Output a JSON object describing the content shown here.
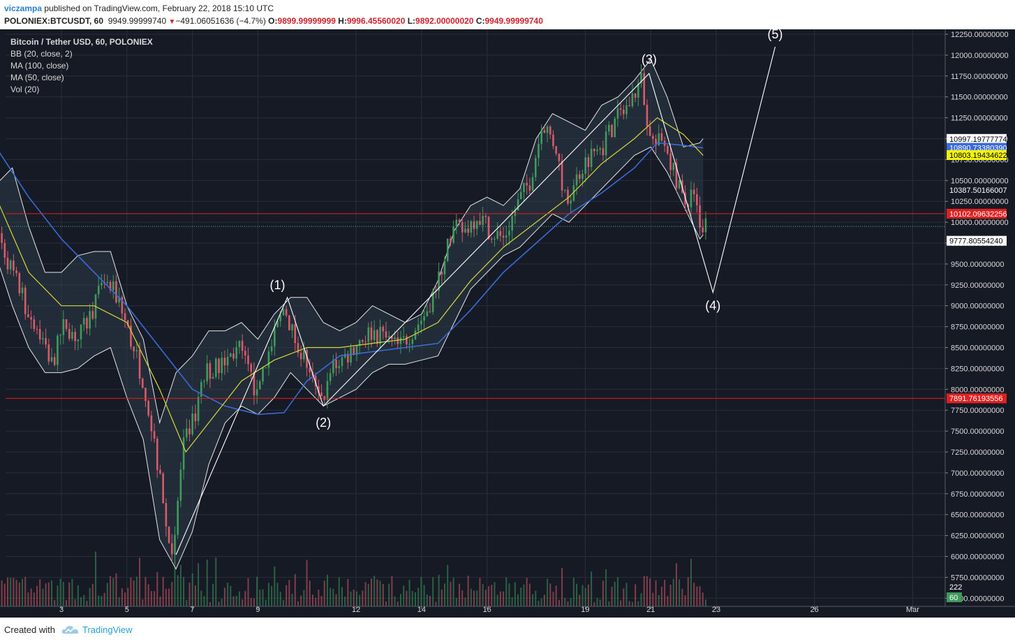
{
  "header": {
    "author": "viczampa",
    "published_text": "published on TradingView.com, February 22, 2018 15:10 UTC",
    "symbol": "POLONIEX:BTCUSDT, 60",
    "price": "9949.99999740",
    "change": "−491.06051636 (−4.7%)",
    "o_label": "O:",
    "o": "9899.99999999",
    "h_label": "H:",
    "h": "9996.45560020",
    "l_label": "L:",
    "l": "9892.00000020",
    "c_label": "C:",
    "c": "9949.99999740"
  },
  "legend": [
    "Bitcoin / Tether USD, 60, POLONIEX",
    "BB (20, close, 2)",
    "MA (100, close)",
    "MA (50, close)",
    "Vol (20)"
  ],
  "footer": {
    "created_with": "Created with",
    "brand": "TradingView"
  },
  "colors": {
    "background": "#161a25",
    "grid": "#2a2e39",
    "up": "#3f9a5c",
    "down": "#d95b6a",
    "ma100": "#3a6bd6",
    "ma50": "#d6d63a",
    "bb": "#e6e6e6",
    "wave": "#ffffff",
    "hline": "#e02020"
  },
  "chart_data": {
    "type": "candlestick",
    "ylim": [
      5500,
      12250
    ],
    "y_ticks": [
      "12250.00000000",
      "12000.00000000",
      "11750.00000000",
      "11500.00000000",
      "11250.00000000",
      "11000.00000000",
      "10750.00000000",
      "10500.00000000",
      "10250.00000000",
      "10000.00000000",
      "9750.00000000",
      "9500.00000000",
      "9250.00000000",
      "9000.00000000",
      "8750.00000000",
      "8500.00000000",
      "8250.00000000",
      "8000.00000000",
      "7750.00000000",
      "7500.00000000",
      "7250.00000000",
      "7000.00000000",
      "6750.00000000",
      "6500.00000000",
      "6250.00000000",
      "6000.00000000",
      "5750.00000000",
      "5500.00000000"
    ],
    "x_ticks": [
      {
        "label": "3",
        "day": 3
      },
      {
        "label": "5",
        "day": 5
      },
      {
        "label": "7",
        "day": 7
      },
      {
        "label": "9",
        "day": 9
      },
      {
        "label": "12",
        "day": 12
      },
      {
        "label": "14",
        "day": 14
      },
      {
        "label": "16",
        "day": 16
      },
      {
        "label": "19",
        "day": 19
      },
      {
        "label": "21",
        "day": 21
      },
      {
        "label": "23",
        "day": 23
      },
      {
        "label": "26",
        "day": 26
      },
      {
        "label": "Mar",
        "day": 29
      }
    ],
    "price_path": [
      [
        1.0,
        10100
      ],
      [
        1.3,
        9700
      ],
      [
        1.6,
        9400
      ],
      [
        2.0,
        9000
      ],
      [
        2.4,
        8700
      ],
      [
        2.8,
        8300
      ],
      [
        3.2,
        8800
      ],
      [
        3.6,
        8600
      ],
      [
        4.0,
        8900
      ],
      [
        4.4,
        9300
      ],
      [
        4.8,
        9100
      ],
      [
        5.2,
        8600
      ],
      [
        5.6,
        8100
      ],
      [
        6.0,
        7200
      ],
      [
        6.3,
        6300
      ],
      [
        6.5,
        6050
      ],
      [
        6.8,
        7300
      ],
      [
        7.1,
        7600
      ],
      [
        7.5,
        8200
      ],
      [
        8.0,
        8300
      ],
      [
        8.5,
        8500
      ],
      [
        9.0,
        8000
      ],
      [
        9.5,
        8500
      ],
      [
        9.9,
        9000
      ],
      [
        10.2,
        8600
      ],
      [
        10.6,
        8300
      ],
      [
        11.0,
        7800
      ],
      [
        11.4,
        8300
      ],
      [
        11.8,
        8400
      ],
      [
        12.2,
        8600
      ],
      [
        12.6,
        8700
      ],
      [
        13.0,
        8600
      ],
      [
        13.4,
        8500
      ],
      [
        13.8,
        8700
      ],
      [
        14.2,
        8900
      ],
      [
        14.6,
        9300
      ],
      [
        15.0,
        9900
      ],
      [
        15.4,
        9900
      ],
      [
        15.8,
        10100
      ],
      [
        16.2,
        9900
      ],
      [
        16.6,
        9800
      ],
      [
        17.0,
        10200
      ],
      [
        17.4,
        10500
      ],
      [
        17.8,
        11200
      ],
      [
        18.2,
        10900
      ],
      [
        18.5,
        10200
      ],
      [
        18.9,
        10600
      ],
      [
        19.2,
        10800
      ],
      [
        19.6,
        10900
      ],
      [
        20.0,
        11200
      ],
      [
        20.4,
        11400
      ],
      [
        20.8,
        11700
      ],
      [
        21.0,
        11200
      ],
      [
        21.2,
        10900
      ],
      [
        21.5,
        11000
      ],
      [
        21.8,
        10600
      ],
      [
        22.1,
        10200
      ],
      [
        22.4,
        10400
      ],
      [
        22.6,
        10000
      ],
      [
        22.75,
        9950
      ]
    ],
    "ma50_path": [
      [
        1.0,
        10300
      ],
      [
        2.0,
        9400
      ],
      [
        3.0,
        9000
      ],
      [
        4.0,
        9000
      ],
      [
        5.0,
        8800
      ],
      [
        6.0,
        8000
      ],
      [
        6.8,
        7250
      ],
      [
        7.5,
        7600
      ],
      [
        8.5,
        8100
      ],
      [
        9.5,
        8350
      ],
      [
        10.5,
        8500
      ],
      [
        11.5,
        8500
      ],
      [
        12.5,
        8550
      ],
      [
        13.5,
        8600
      ],
      [
        14.5,
        8800
      ],
      [
        15.5,
        9300
      ],
      [
        16.5,
        9700
      ],
      [
        17.5,
        10000
      ],
      [
        18.5,
        10300
      ],
      [
        19.5,
        10700
      ],
      [
        20.5,
        11000
      ],
      [
        21.2,
        11250
      ],
      [
        22.0,
        11050
      ],
      [
        22.6,
        10800
      ]
    ],
    "ma100_path": [
      [
        1.0,
        10900
      ],
      [
        2.0,
        10300
      ],
      [
        3.0,
        9800
      ],
      [
        4.0,
        9400
      ],
      [
        5.0,
        9000
      ],
      [
        6.0,
        8500
      ],
      [
        7.0,
        8000
      ],
      [
        8.0,
        7800
      ],
      [
        9.0,
        7700
      ],
      [
        9.8,
        7720
      ],
      [
        10.5,
        8100
      ],
      [
        11.5,
        8400
      ],
      [
        12.5,
        8450
      ],
      [
        13.5,
        8500
      ],
      [
        14.5,
        8550
      ],
      [
        15.5,
        8950
      ],
      [
        16.5,
        9400
      ],
      [
        17.5,
        9750
      ],
      [
        18.5,
        10100
      ],
      [
        19.5,
        10350
      ],
      [
        20.5,
        10650
      ],
      [
        21.2,
        10950
      ],
      [
        22.0,
        10920
      ],
      [
        22.6,
        10890
      ]
    ],
    "bb_upper": [
      [
        1.0,
        10450
      ],
      [
        1.5,
        10650
      ],
      [
        2.0,
        9950
      ],
      [
        2.5,
        9400
      ],
      [
        3.0,
        9400
      ],
      [
        3.5,
        9600
      ],
      [
        4.0,
        9650
      ],
      [
        4.5,
        9650
      ],
      [
        5.0,
        9000
      ],
      [
        5.5,
        8600
      ],
      [
        6.0,
        7600
      ],
      [
        6.5,
        8200
      ],
      [
        7.0,
        8400
      ],
      [
        7.5,
        8700
      ],
      [
        8.0,
        8700
      ],
      [
        8.5,
        8800
      ],
      [
        9.0,
        8600
      ],
      [
        9.5,
        8900
      ],
      [
        10.0,
        9100
      ],
      [
        10.5,
        9100
      ],
      [
        11.0,
        8800
      ],
      [
        11.5,
        8700
      ],
      [
        12.0,
        8800
      ],
      [
        12.5,
        9000
      ],
      [
        13.0,
        8900
      ],
      [
        13.5,
        8800
      ],
      [
        14.0,
        8900
      ],
      [
        14.5,
        9300
      ],
      [
        15.0,
        9900
      ],
      [
        15.5,
        10200
      ],
      [
        16.0,
        10300
      ],
      [
        16.5,
        10200
      ],
      [
        17.0,
        10400
      ],
      [
        17.5,
        11000
      ],
      [
        18.0,
        11300
      ],
      [
        18.5,
        11200
      ],
      [
        19.0,
        11100
      ],
      [
        19.5,
        11400
      ],
      [
        20.0,
        11500
      ],
      [
        20.5,
        11700
      ],
      [
        21.0,
        11950
      ],
      [
        21.5,
        11500
      ],
      [
        22.0,
        10900
      ],
      [
        22.5,
        10950
      ],
      [
        22.6,
        11000
      ]
    ],
    "bb_lower": [
      [
        1.0,
        9600
      ],
      [
        1.5,
        9000
      ],
      [
        2.0,
        8500
      ],
      [
        2.5,
        8200
      ],
      [
        3.0,
        8200
      ],
      [
        3.5,
        8250
      ],
      [
        4.0,
        8400
      ],
      [
        4.5,
        8500
      ],
      [
        5.0,
        7900
      ],
      [
        5.5,
        7400
      ],
      [
        6.0,
        6200
      ],
      [
        6.5,
        5850
      ],
      [
        7.0,
        6300
      ],
      [
        7.5,
        7100
      ],
      [
        8.0,
        7600
      ],
      [
        8.5,
        7800
      ],
      [
        9.0,
        7700
      ],
      [
        9.5,
        7900
      ],
      [
        10.0,
        8200
      ],
      [
        10.5,
        8000
      ],
      [
        11.0,
        7800
      ],
      [
        11.5,
        7900
      ],
      [
        12.0,
        8000
      ],
      [
        12.5,
        8200
      ],
      [
        13.0,
        8300
      ],
      [
        13.5,
        8300
      ],
      [
        14.0,
        8350
      ],
      [
        14.5,
        8400
      ],
      [
        15.0,
        8800
      ],
      [
        15.5,
        9200
      ],
      [
        16.0,
        9400
      ],
      [
        16.5,
        9600
      ],
      [
        17.0,
        9700
      ],
      [
        17.5,
        9900
      ],
      [
        18.0,
        10100
      ],
      [
        18.5,
        10000
      ],
      [
        19.0,
        10200
      ],
      [
        19.5,
        10400
      ],
      [
        20.0,
        10600
      ],
      [
        20.5,
        10800
      ],
      [
        21.0,
        10900
      ],
      [
        21.5,
        10600
      ],
      [
        22.0,
        10200
      ],
      [
        22.5,
        9800
      ],
      [
        22.6,
        9850
      ]
    ],
    "wave_path": [
      [
        6.5,
        6020
      ],
      [
        9.9,
        9100
      ],
      [
        11.0,
        7800
      ],
      [
        20.95,
        11780
      ],
      [
        22.9,
        9160
      ],
      [
        24.8,
        12100
      ]
    ],
    "wave_labels": [
      {
        "text": "(1)",
        "day": 9.6,
        "price": 9200
      },
      {
        "text": "(2)",
        "day": 11.0,
        "price": 7550
      },
      {
        "text": "(3)",
        "day": 20.95,
        "price": 11900
      },
      {
        "text": "(4)",
        "day": 22.9,
        "price": 8950
      },
      {
        "text": "(5)",
        "day": 24.8,
        "price": 12200
      }
    ],
    "hlines": [
      10102.09632256,
      7891.76193556
    ],
    "last_price": 9949.9999974,
    "price_labels": [
      {
        "text": "10997.19777774",
        "price": 10997.2,
        "bg": "#ffffff",
        "fg": "#000000"
      },
      {
        "text": "10890.73380390",
        "price": 10890.7,
        "bg": "#3a6bd6",
        "fg": "#ffffff"
      },
      {
        "text": "10803.19434622",
        "price": 10803.2,
        "bg": "#f4f40a",
        "fg": "#000000"
      },
      {
        "text": "10387.50166007",
        "price": 10387.5,
        "bg": "#161a25",
        "fg": "#ffffff"
      },
      {
        "text": "10102.09632256",
        "price": 10102.1,
        "bg": "#e02020",
        "fg": "#ffffff"
      },
      {
        "text": "9777.80554240",
        "price": 9777.8,
        "bg": "#ffffff",
        "fg": "#000000"
      },
      {
        "text": "7891.76193556",
        "price": 7891.8,
        "bg": "#e02020",
        "fg": "#ffffff"
      }
    ],
    "volume_labels": [
      {
        "text": "222",
        "bg": "#161a25",
        "fg": "#ffffff"
      },
      {
        "text": "60",
        "bg": "#3f9a5c",
        "fg": "#ffffff"
      }
    ]
  }
}
